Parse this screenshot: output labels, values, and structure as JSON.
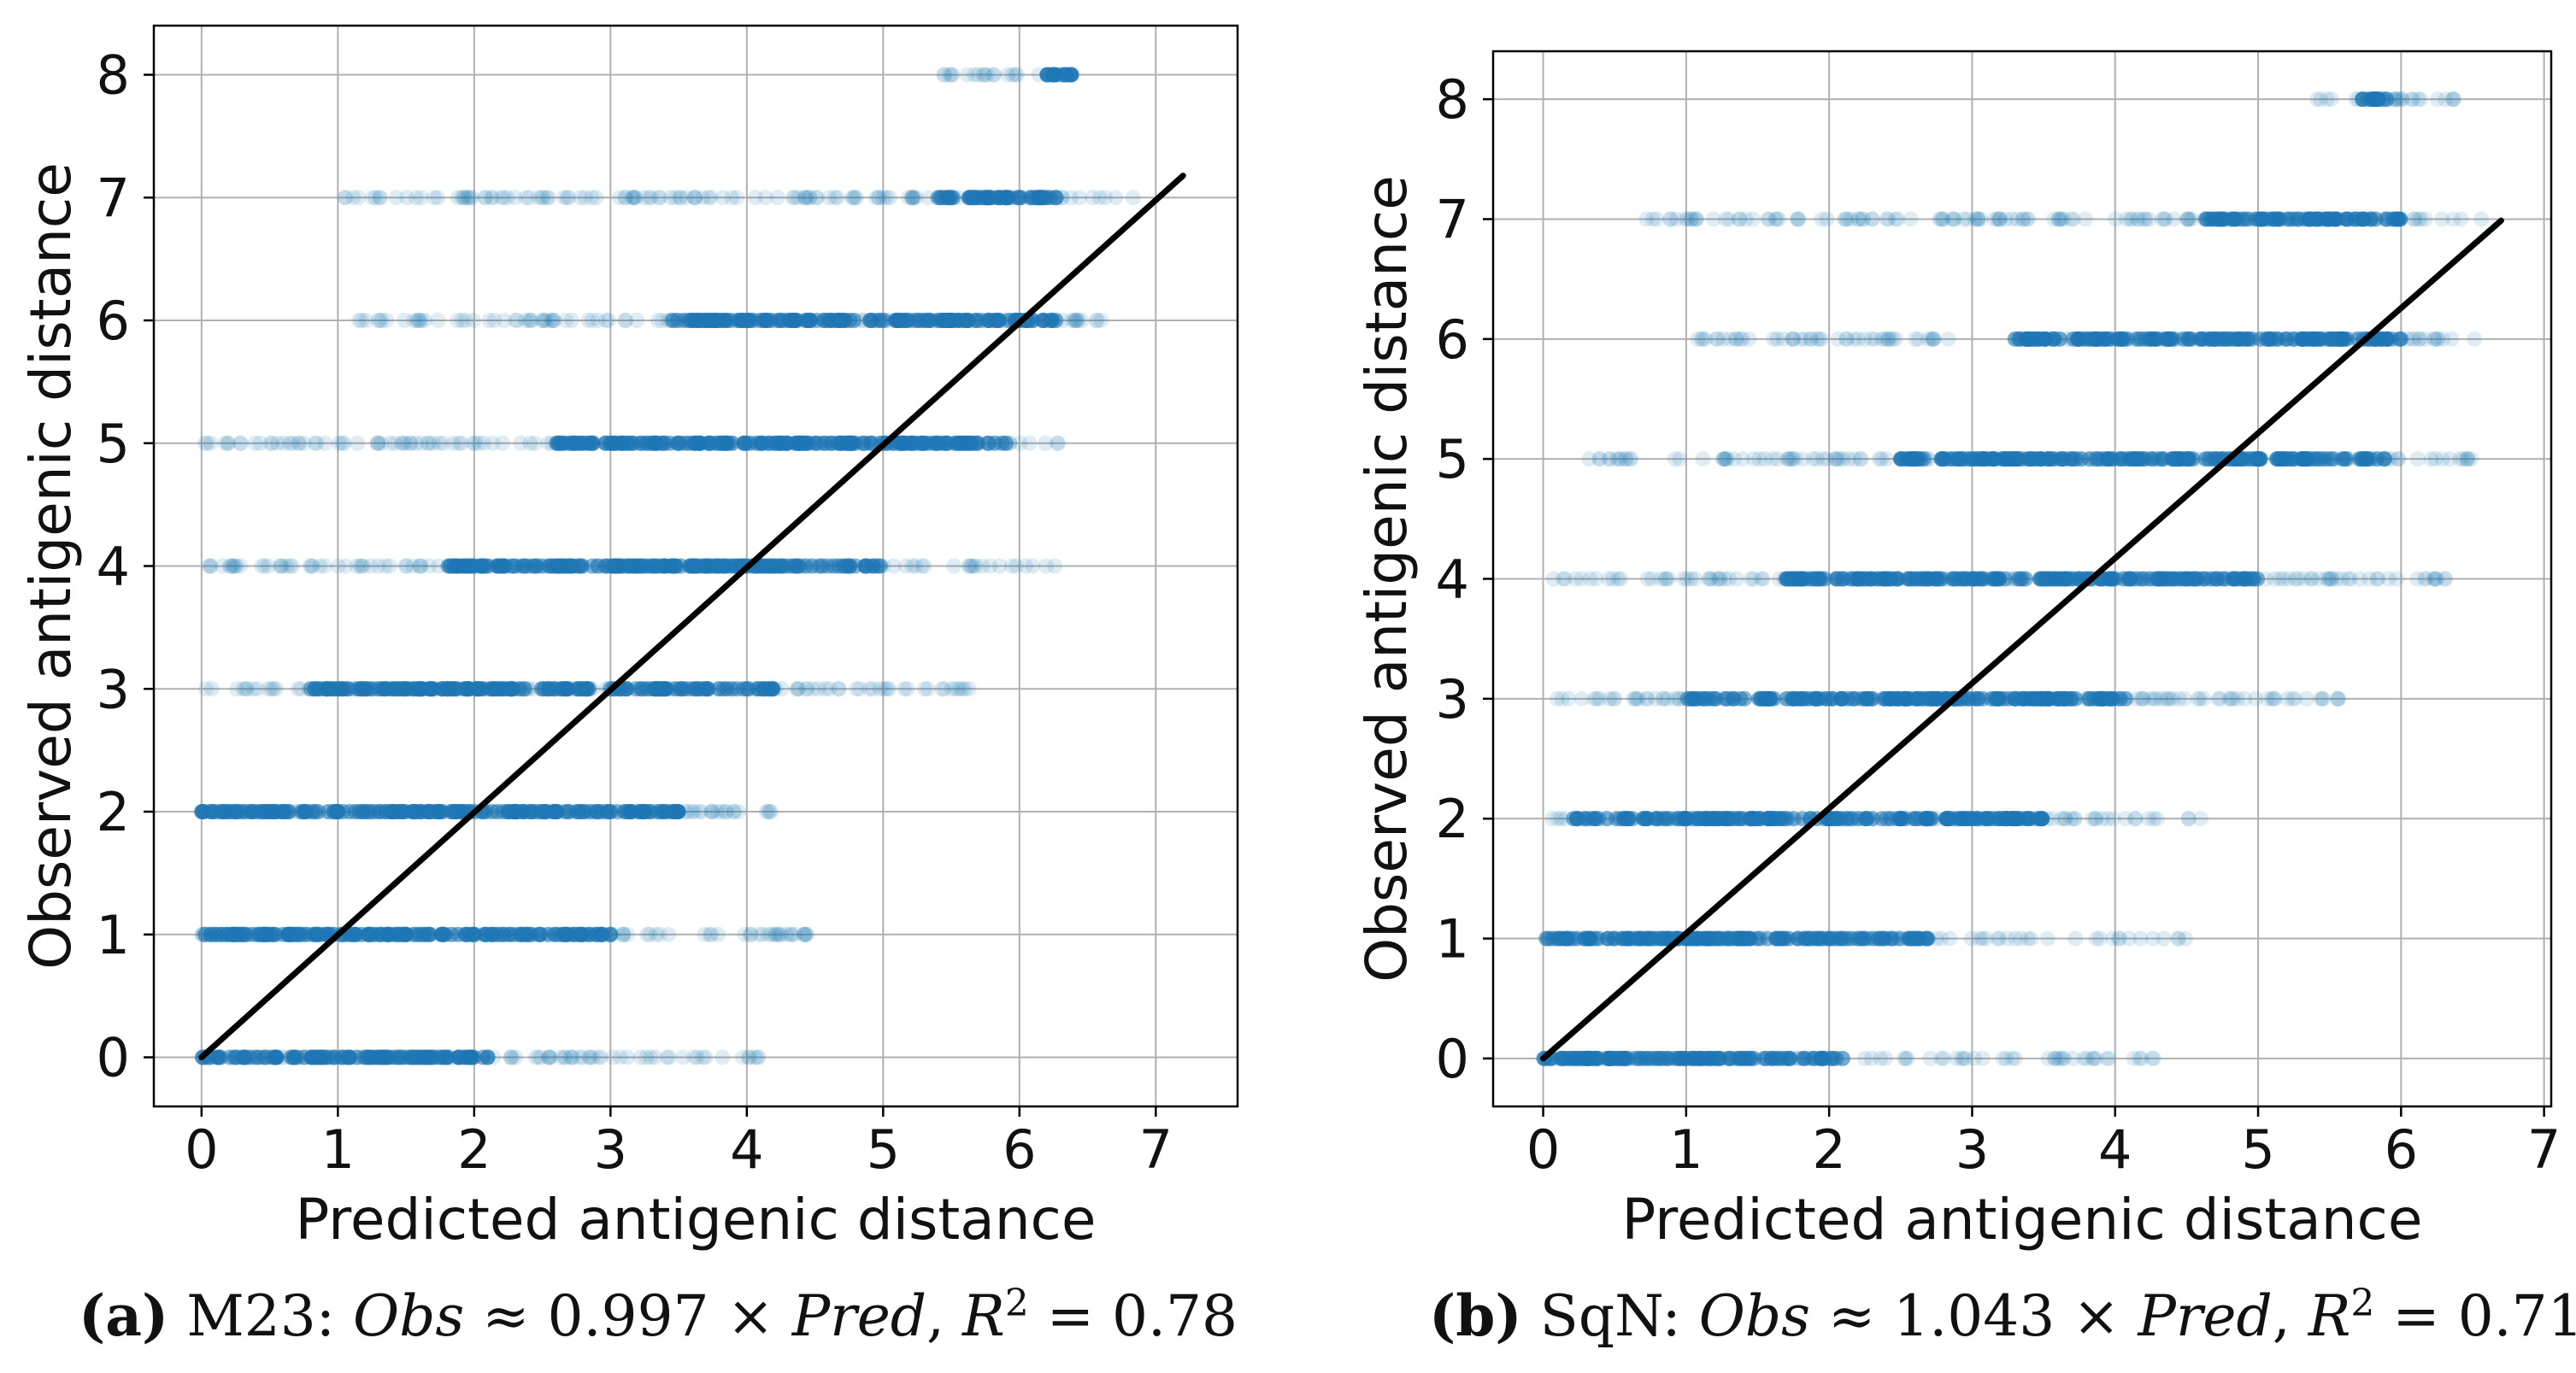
{
  "figure": {
    "panels": [
      {
        "id": "a",
        "letter": "a",
        "model": "M23",
        "obs_label": "Obs",
        "approx": "≈",
        "slope": "0.997",
        "times": "×",
        "pred_label": "Pred",
        "r2_label": "R",
        "r2_exp": "2",
        "r2_eq": "=",
        "r2_value": "0.78"
      },
      {
        "id": "b",
        "letter": "b",
        "model": "SqN",
        "obs_label": "Obs",
        "approx": "≈",
        "slope": "1.043",
        "times": "×",
        "pred_label": "Pred",
        "r2_label": "R",
        "r2_exp": "2",
        "r2_eq": "=",
        "r2_value": "0.71"
      }
    ]
  },
  "colors": {
    "points": "#1f77b4",
    "fit_line": "#000000",
    "grid": "#b0b0b0",
    "axes": "#000000"
  },
  "chart_data": [
    {
      "type": "scatter",
      "title": "",
      "xlabel": "Predicted antigenic distance",
      "ylabel": "Observed antigenic distance",
      "xlim": [
        -0.35,
        7.6
      ],
      "ylim": [
        -0.4,
        8.4
      ],
      "xticks": [
        "0",
        "1",
        "2",
        "3",
        "4",
        "5",
        "6",
        "7"
      ],
      "yticks": [
        "0",
        "1",
        "2",
        "3",
        "4",
        "5",
        "6",
        "7",
        "8"
      ],
      "grid": true,
      "fit_line": {
        "slope": 0.997,
        "x_range": [
          0,
          7.2
        ]
      },
      "point_ranges": [
        {
          "y": 0,
          "x_min": 0.0,
          "x_max": 4.1,
          "dense_min": 0.0,
          "dense_max": 2.1
        },
        {
          "y": 1,
          "x_min": 0.0,
          "x_max": 4.5,
          "dense_min": 0.0,
          "dense_max": 3.0
        },
        {
          "y": 2,
          "x_min": 0.0,
          "x_max": 4.2,
          "dense_min": 0.0,
          "dense_max": 3.5
        },
        {
          "y": 3,
          "x_min": 0.0,
          "x_max": 5.7,
          "dense_min": 0.8,
          "dense_max": 4.2
        },
        {
          "y": 4,
          "x_min": 0.0,
          "x_max": 6.3,
          "dense_min": 1.8,
          "dense_max": 5.0
        },
        {
          "y": 5,
          "x_min": 0.0,
          "x_max": 6.3,
          "dense_min": 2.6,
          "dense_max": 5.9
        },
        {
          "y": 6,
          "x_min": 1.1,
          "x_max": 6.7,
          "dense_min": 3.4,
          "dense_max": 6.3
        },
        {
          "y": 7,
          "x_min": 1.0,
          "x_max": 6.9,
          "dense_min": 5.4,
          "dense_max": 6.3
        },
        {
          "y": 8,
          "x_min": 5.4,
          "x_max": 6.4,
          "dense_min": 6.2,
          "dense_max": 6.4
        }
      ]
    },
    {
      "type": "scatter",
      "title": "",
      "xlabel": "Predicted antigenic distance",
      "ylabel": "Observed antigenic distance",
      "xlim": [
        -0.35,
        7.05
      ],
      "ylim": [
        -0.4,
        8.4
      ],
      "xticks": [
        "0",
        "1",
        "2",
        "3",
        "4",
        "5",
        "6",
        "7"
      ],
      "yticks": [
        "0",
        "1",
        "2",
        "3",
        "4",
        "5",
        "6",
        "7",
        "8"
      ],
      "grid": true,
      "fit_line": {
        "slope": 1.043,
        "x_range": [
          0,
          6.7
        ]
      },
      "point_ranges": [
        {
          "y": 0,
          "x_min": 0.0,
          "x_max": 4.3,
          "dense_min": 0.0,
          "dense_max": 2.1
        },
        {
          "y": 1,
          "x_min": 0.0,
          "x_max": 4.5,
          "dense_min": 0.0,
          "dense_max": 2.7
        },
        {
          "y": 2,
          "x_min": 0.0,
          "x_max": 4.6,
          "dense_min": 0.2,
          "dense_max": 3.5
        },
        {
          "y": 3,
          "x_min": 0.0,
          "x_max": 5.6,
          "dense_min": 1.0,
          "dense_max": 4.1
        },
        {
          "y": 4,
          "x_min": 0.0,
          "x_max": 6.4,
          "dense_min": 1.7,
          "dense_max": 5.0
        },
        {
          "y": 5,
          "x_min": 0.3,
          "x_max": 6.5,
          "dense_min": 2.5,
          "dense_max": 5.9
        },
        {
          "y": 6,
          "x_min": 1.0,
          "x_max": 6.6,
          "dense_min": 3.3,
          "dense_max": 6.0
        },
        {
          "y": 7,
          "x_min": 0.7,
          "x_max": 6.6,
          "dense_min": 4.6,
          "dense_max": 6.0
        },
        {
          "y": 8,
          "x_min": 5.4,
          "x_max": 6.5,
          "dense_min": 5.7,
          "dense_max": 5.9
        }
      ]
    }
  ]
}
